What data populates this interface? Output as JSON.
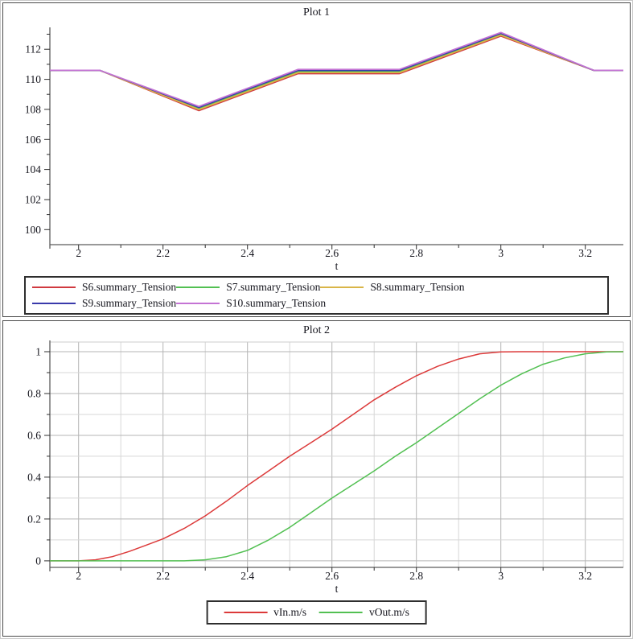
{
  "window": {
    "kind": "plot-output-window"
  },
  "chart_data": [
    {
      "type": "line",
      "title": "Plot 1",
      "xlabel": "t",
      "ylabel": "",
      "xlim": [
        1.932,
        3.29
      ],
      "ylim": [
        99.0,
        113.35
      ],
      "grid": false,
      "legend_position": "bottom",
      "x_ticks": {
        "values": [
          2,
          2.2,
          2.4,
          2.6,
          2.8,
          3,
          3.2
        ],
        "labels": [
          "2",
          "2.2",
          "2.4",
          "2.6",
          "2.8",
          "3",
          "3.2"
        ]
      },
      "x_minor_ticks": [
        2.1,
        2.3,
        2.5,
        2.7,
        2.9,
        3.1
      ],
      "y_ticks": {
        "values": [
          100,
          102,
          104,
          106,
          108,
          110,
          112
        ],
        "labels": [
          "100",
          "102",
          "104",
          "106",
          "108",
          "110",
          "112"
        ]
      },
      "y_minor_ticks": [
        101,
        103,
        105,
        107,
        109,
        111,
        113
      ],
      "series": [
        {
          "name": "S6.summary_Tension",
          "color": "#d03a40",
          "points": [
            [
              1.932,
              110.6
            ],
            [
              2.05,
              110.6
            ],
            [
              2.285,
              107.92
            ],
            [
              2.52,
              110.38
            ],
            [
              2.76,
              110.38
            ],
            [
              3.0,
              112.88
            ],
            [
              3.22,
              110.6
            ],
            [
              3.29,
              110.6
            ]
          ]
        },
        {
          "name": "S7.summary_Tension",
          "color": "#52c052",
          "points": [
            [
              1.932,
              110.6
            ],
            [
              2.05,
              110.6
            ],
            [
              2.285,
              108.06
            ],
            [
              2.52,
              110.52
            ],
            [
              2.76,
              110.52
            ],
            [
              3.0,
              113.0
            ],
            [
              3.22,
              110.6
            ],
            [
              3.29,
              110.6
            ]
          ]
        },
        {
          "name": "S8.summary_Tension",
          "color": "#d9b548",
          "points": [
            [
              1.932,
              110.6
            ],
            [
              2.05,
              110.6
            ],
            [
              2.285,
              107.99
            ],
            [
              2.52,
              110.45
            ],
            [
              2.76,
              110.45
            ],
            [
              3.0,
              112.94
            ],
            [
              3.22,
              110.6
            ],
            [
              3.29,
              110.6
            ]
          ]
        },
        {
          "name": "S9.summary_Tension",
          "color": "#3a3aab",
          "points": [
            [
              1.932,
              110.6
            ],
            [
              2.05,
              110.6
            ],
            [
              2.285,
              108.13
            ],
            [
              2.52,
              110.59
            ],
            [
              2.76,
              110.59
            ],
            [
              3.0,
              113.06
            ],
            [
              3.22,
              110.6
            ],
            [
              3.29,
              110.6
            ]
          ]
        },
        {
          "name": "S10.summary_Tension",
          "color": "#c473d4",
          "points": [
            [
              1.932,
              110.6
            ],
            [
              2.05,
              110.6
            ],
            [
              2.285,
              108.2
            ],
            [
              2.52,
              110.66
            ],
            [
              2.76,
              110.66
            ],
            [
              3.0,
              113.12
            ],
            [
              3.22,
              110.6
            ],
            [
              3.29,
              110.6
            ]
          ]
        }
      ]
    },
    {
      "type": "line",
      "title": "Plot 2",
      "xlabel": "t",
      "ylabel": "",
      "xlim": [
        1.932,
        3.29
      ],
      "ylim": [
        -0.031,
        1.046
      ],
      "grid": true,
      "legend_position": "bottom-center",
      "x_ticks": {
        "values": [
          2,
          2.2,
          2.4,
          2.6,
          2.8,
          3,
          3.2
        ],
        "labels": [
          "2",
          "2.2",
          "2.4",
          "2.6",
          "2.8",
          "3",
          "3.2"
        ]
      },
      "x_minor_ticks": [
        2.1,
        2.3,
        2.5,
        2.7,
        2.9,
        3.1
      ],
      "y_ticks": {
        "values": [
          0,
          0.2,
          0.4,
          0.6,
          0.8,
          1
        ],
        "labels": [
          "0",
          "0.2",
          "0.4",
          "0.6",
          "0.8",
          "1"
        ]
      },
      "y_minor_ticks": [
        0.1,
        0.3,
        0.5,
        0.7,
        0.9
      ],
      "grid_x": [
        2,
        2.1,
        2.2,
        2.3,
        2.4,
        2.5,
        2.6,
        2.7,
        2.8,
        2.9,
        3,
        3.1,
        3.2
      ],
      "grid_y": [
        0,
        0.1,
        0.2,
        0.3,
        0.4,
        0.5,
        0.6,
        0.7,
        0.8,
        0.9,
        1
      ],
      "series": [
        {
          "name": "vIn.m/s",
          "color": "#dc3a3a",
          "points": [
            [
              1.932,
              0
            ],
            [
              2.0,
              0
            ],
            [
              2.04,
              0.005
            ],
            [
              2.08,
              0.02
            ],
            [
              2.12,
              0.045
            ],
            [
              2.16,
              0.075
            ],
            [
              2.2,
              0.105
            ],
            [
              2.25,
              0.155
            ],
            [
              2.3,
              0.215
            ],
            [
              2.35,
              0.285
            ],
            [
              2.4,
              0.36
            ],
            [
              2.45,
              0.43
            ],
            [
              2.5,
              0.5
            ],
            [
              2.55,
              0.565
            ],
            [
              2.6,
              0.63
            ],
            [
              2.65,
              0.7
            ],
            [
              2.7,
              0.77
            ],
            [
              2.75,
              0.83
            ],
            [
              2.8,
              0.885
            ],
            [
              2.85,
              0.93
            ],
            [
              2.9,
              0.965
            ],
            [
              2.95,
              0.99
            ],
            [
              3.0,
              0.999
            ],
            [
              3.05,
              1.0
            ],
            [
              3.29,
              1.0
            ]
          ]
        },
        {
          "name": "vOut.m/s",
          "color": "#52c052",
          "points": [
            [
              1.932,
              0
            ],
            [
              2.25,
              0
            ],
            [
              2.3,
              0.005
            ],
            [
              2.35,
              0.02
            ],
            [
              2.4,
              0.05
            ],
            [
              2.45,
              0.1
            ],
            [
              2.5,
              0.16
            ],
            [
              2.55,
              0.23
            ],
            [
              2.6,
              0.3
            ],
            [
              2.65,
              0.365
            ],
            [
              2.7,
              0.43
            ],
            [
              2.75,
              0.5
            ],
            [
              2.8,
              0.565
            ],
            [
              2.85,
              0.635
            ],
            [
              2.9,
              0.705
            ],
            [
              2.95,
              0.775
            ],
            [
              3.0,
              0.84
            ],
            [
              3.05,
              0.895
            ],
            [
              3.1,
              0.94
            ],
            [
              3.15,
              0.97
            ],
            [
              3.2,
              0.99
            ],
            [
              3.25,
              0.999
            ],
            [
              3.29,
              1.0
            ]
          ]
        }
      ]
    }
  ]
}
